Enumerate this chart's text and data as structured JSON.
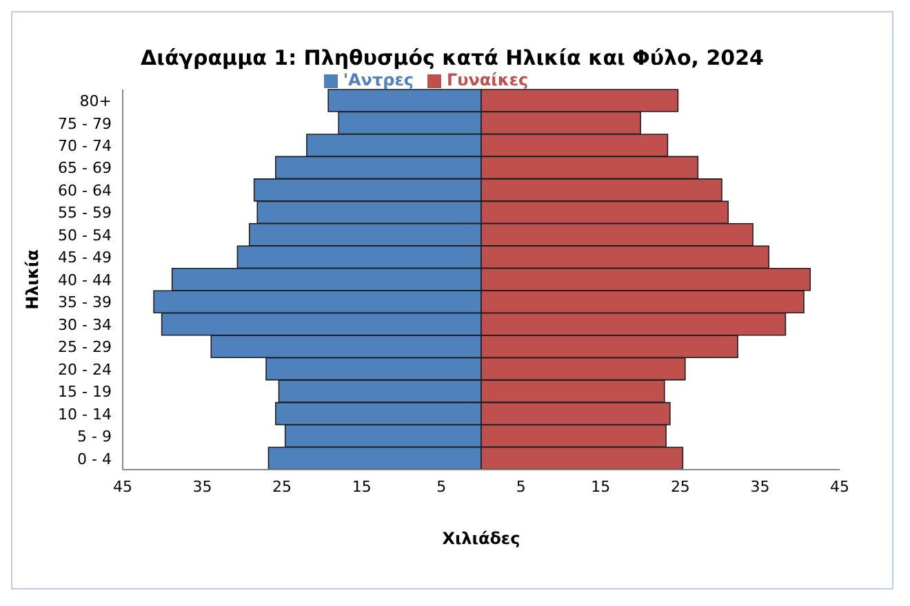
{
  "chart_data": {
    "type": "bar",
    "orientation": "horizontal",
    "stacked": true,
    "title": "Διάγραμμα 1: Πληθυσμός κατά Ηλικία και Φύλο, 2024",
    "xlabel": "Χιλιάδες",
    "ylabel": "Ηλικία",
    "categories": [
      "80+",
      "75 - 79",
      "70 - 74",
      "65 - 69",
      "60 - 64",
      "55 - 59",
      "50 - 54",
      "45 - 49",
      "40 - 44",
      "35 - 39",
      "30 - 34",
      "25 - 29",
      "20 - 24",
      "15 - 19",
      "10 - 14",
      "5 -  9",
      "0 -  4"
    ],
    "series": [
      {
        "name": "'Αντρες",
        "color": "#4f81bd",
        "values": [
          -19.2,
          -17.9,
          -21.9,
          -25.8,
          -28.5,
          -28.1,
          -29.1,
          -30.6,
          -38.8,
          -41.1,
          -40.1,
          -33.9,
          -27.0,
          -25.4,
          -25.8,
          -24.6,
          -26.7
        ]
      },
      {
        "name": "Γυναίκες",
        "color": "#c0504d",
        "values": [
          24.7,
          20.0,
          23.4,
          27.2,
          30.2,
          31.0,
          34.1,
          36.1,
          41.3,
          40.5,
          38.2,
          32.2,
          25.6,
          23.0,
          23.7,
          23.2,
          25.3
        ]
      }
    ],
    "xlim": [
      -45,
      45
    ],
    "xticks": [
      {
        "value": -45,
        "label": "45"
      },
      {
        "value": -35,
        "label": "35"
      },
      {
        "value": -25,
        "label": "25"
      },
      {
        "value": -15,
        "label": "15"
      },
      {
        "value": -5,
        "label": "5"
      },
      5,
      15,
      25,
      35,
      45
    ],
    "grid": false,
    "legend": "top"
  }
}
